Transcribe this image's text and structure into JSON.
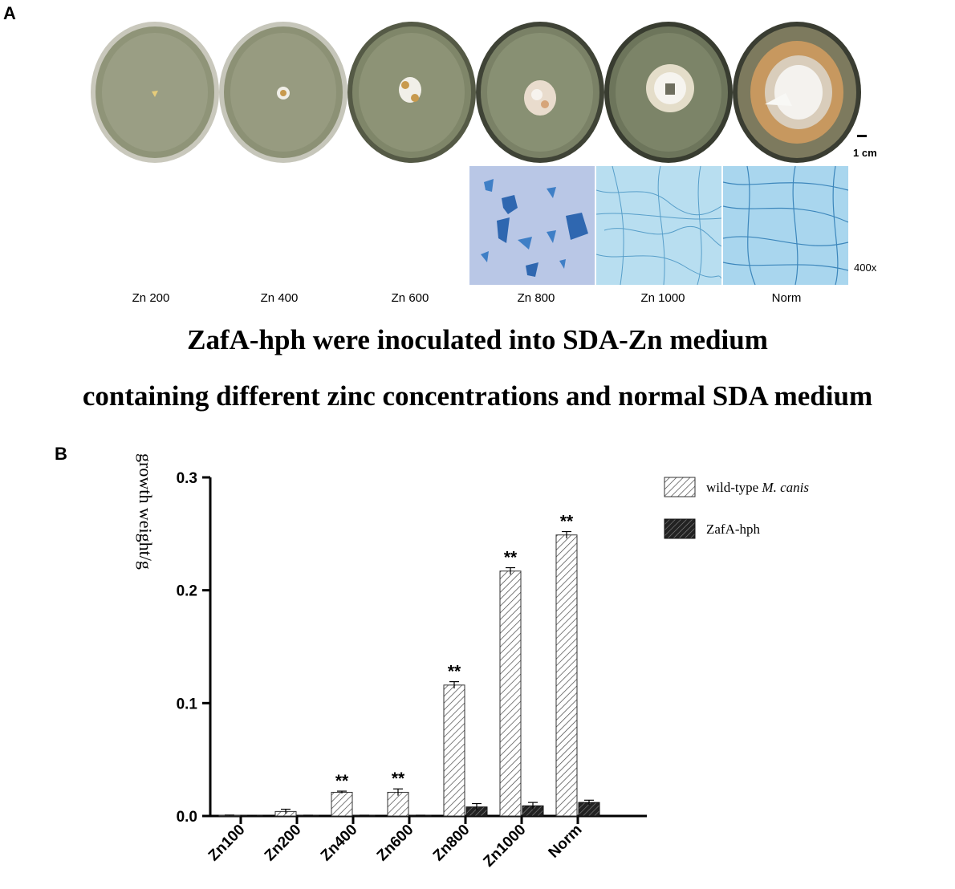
{
  "panel_a_letter": "A",
  "panel_b_letter": "B",
  "scale_bar_label": "1 cm",
  "magnification_label": "400x",
  "plate_labels": [
    "Zn 200",
    "Zn 400",
    "Zn 600",
    "Zn 800",
    "Zn 1000",
    "Norm"
  ],
  "caption_line1": "ZafA-hph were inoculated into SDA-Zn medium",
  "caption_line2": "containing different zinc concentrations and normal SDA medium",
  "colors": {
    "plate_agar": "#8f9478",
    "plate_rim": "#c9c8bc",
    "colony_white": "#f1efe8",
    "colony_orange": "#c89a4e",
    "stain_blue": "#3f7fc6",
    "stain_bg": "#b9c7e6",
    "hyphae_bg": "#b8def0"
  },
  "chart_data": {
    "type": "bar",
    "ylabel": "growth weight/g",
    "xlabel": "",
    "ylim": [
      0,
      0.3
    ],
    "yticks": [
      0.0,
      0.1,
      0.2,
      0.3
    ],
    "ytick_labels": [
      "0.0",
      "0.1",
      "0.2",
      "0.3"
    ],
    "categories": [
      "Zn100",
      "Zn200",
      "Zn400",
      "Zn600",
      "Zn800",
      "Zn1000",
      "Norm"
    ],
    "series": [
      {
        "name": "wild-type M. canis",
        "legend_prefix": "wild-type ",
        "legend_italic": "M. canis",
        "pattern": "light-hatch",
        "values": [
          0.0005,
          0.004,
          0.021,
          0.021,
          0.116,
          0.217,
          0.249
        ],
        "errors": [
          0.0003,
          0.002,
          0.001,
          0.003,
          0.003,
          0.003,
          0.003
        ]
      },
      {
        "name": "ZafA-hph",
        "pattern": "dark-hatch",
        "values": [
          0.0003,
          0.0005,
          0.0005,
          0.0005,
          0.008,
          0.009,
          0.012
        ],
        "errors": [
          0.0002,
          0.0002,
          0.0002,
          0.0002,
          0.003,
          0.003,
          0.002
        ]
      }
    ],
    "significance": [
      "",
      "",
      "**",
      "**",
      "**",
      "**",
      "**"
    ],
    "grid": false,
    "legend_position": "top-right"
  }
}
